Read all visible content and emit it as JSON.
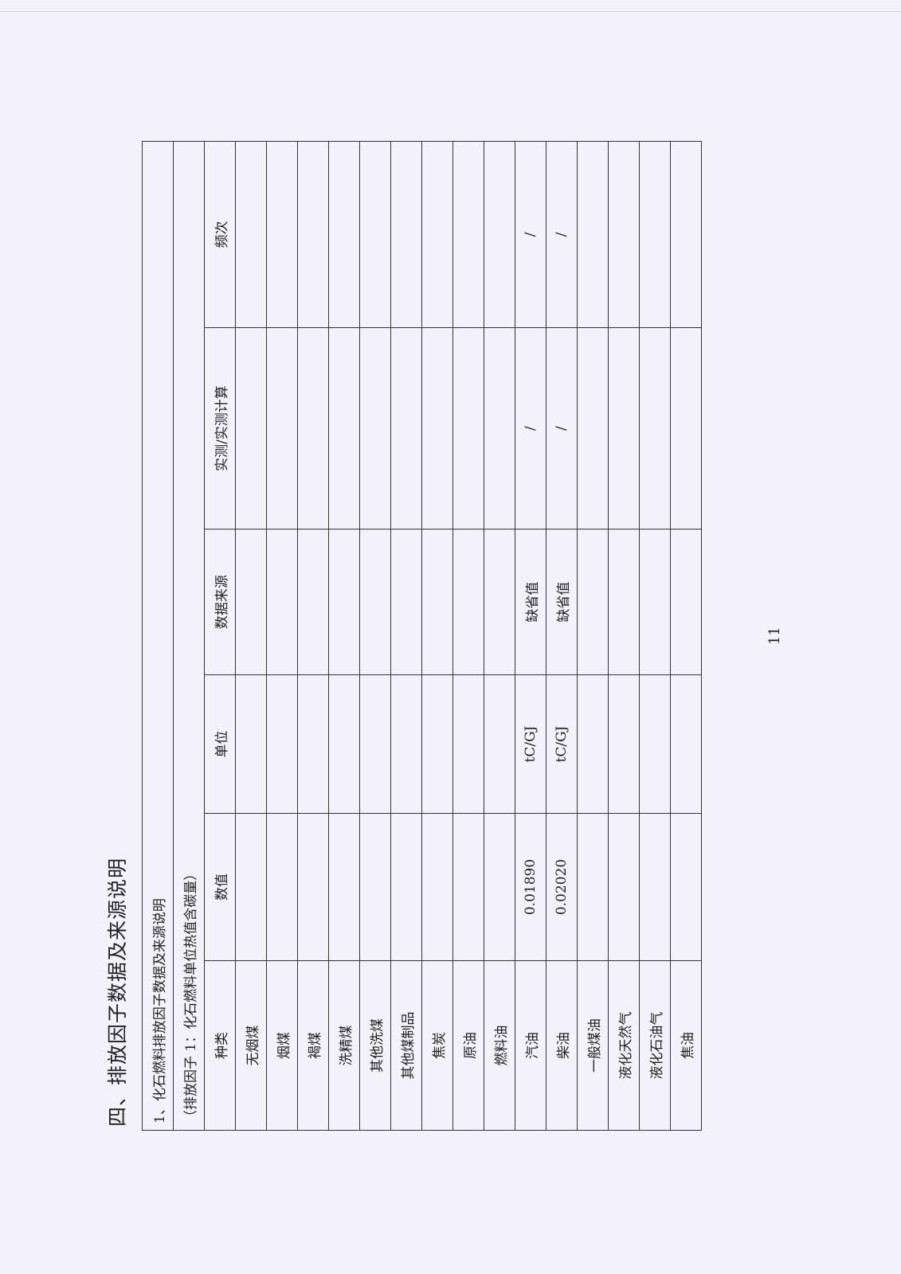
{
  "heading": "四、排放因子数据及来源说明",
  "section_title": "1、化石燃料排放因子数据及来源说明",
  "sub_title": "（排放因子 1：化石燃料单位热值含碳量）",
  "table": {
    "headers": [
      "种类",
      "数值",
      "单位",
      "数据来源",
      "实测/实测计算",
      "频次"
    ],
    "rows": [
      [
        "无烟煤",
        "",
        "",
        "",
        "",
        ""
      ],
      [
        "烟煤",
        "",
        "",
        "",
        "",
        ""
      ],
      [
        "褐煤",
        "",
        "",
        "",
        "",
        ""
      ],
      [
        "洗精煤",
        "",
        "",
        "",
        "",
        ""
      ],
      [
        "其他洗煤",
        "",
        "",
        "",
        "",
        ""
      ],
      [
        "其他煤制品",
        "",
        "",
        "",
        "",
        ""
      ],
      [
        "焦炭",
        "",
        "",
        "",
        "",
        ""
      ],
      [
        "原油",
        "",
        "",
        "",
        "",
        ""
      ],
      [
        "燃料油",
        "",
        "",
        "",
        "",
        ""
      ],
      [
        "汽油",
        "0.01890",
        "tC/GJ",
        "缺省值",
        "/",
        "/"
      ],
      [
        "柴油",
        "0.02020",
        "tC/GJ",
        "缺省值",
        "/",
        "/"
      ],
      [
        "一般煤油",
        "",
        "",
        "",
        "",
        ""
      ],
      [
        "液化天然气",
        "",
        "",
        "",
        "",
        ""
      ],
      [
        "液化石油气",
        "",
        "",
        "",
        "",
        ""
      ],
      [
        "焦油",
        "",
        "",
        "",
        "",
        ""
      ]
    ]
  },
  "page_number": "11"
}
